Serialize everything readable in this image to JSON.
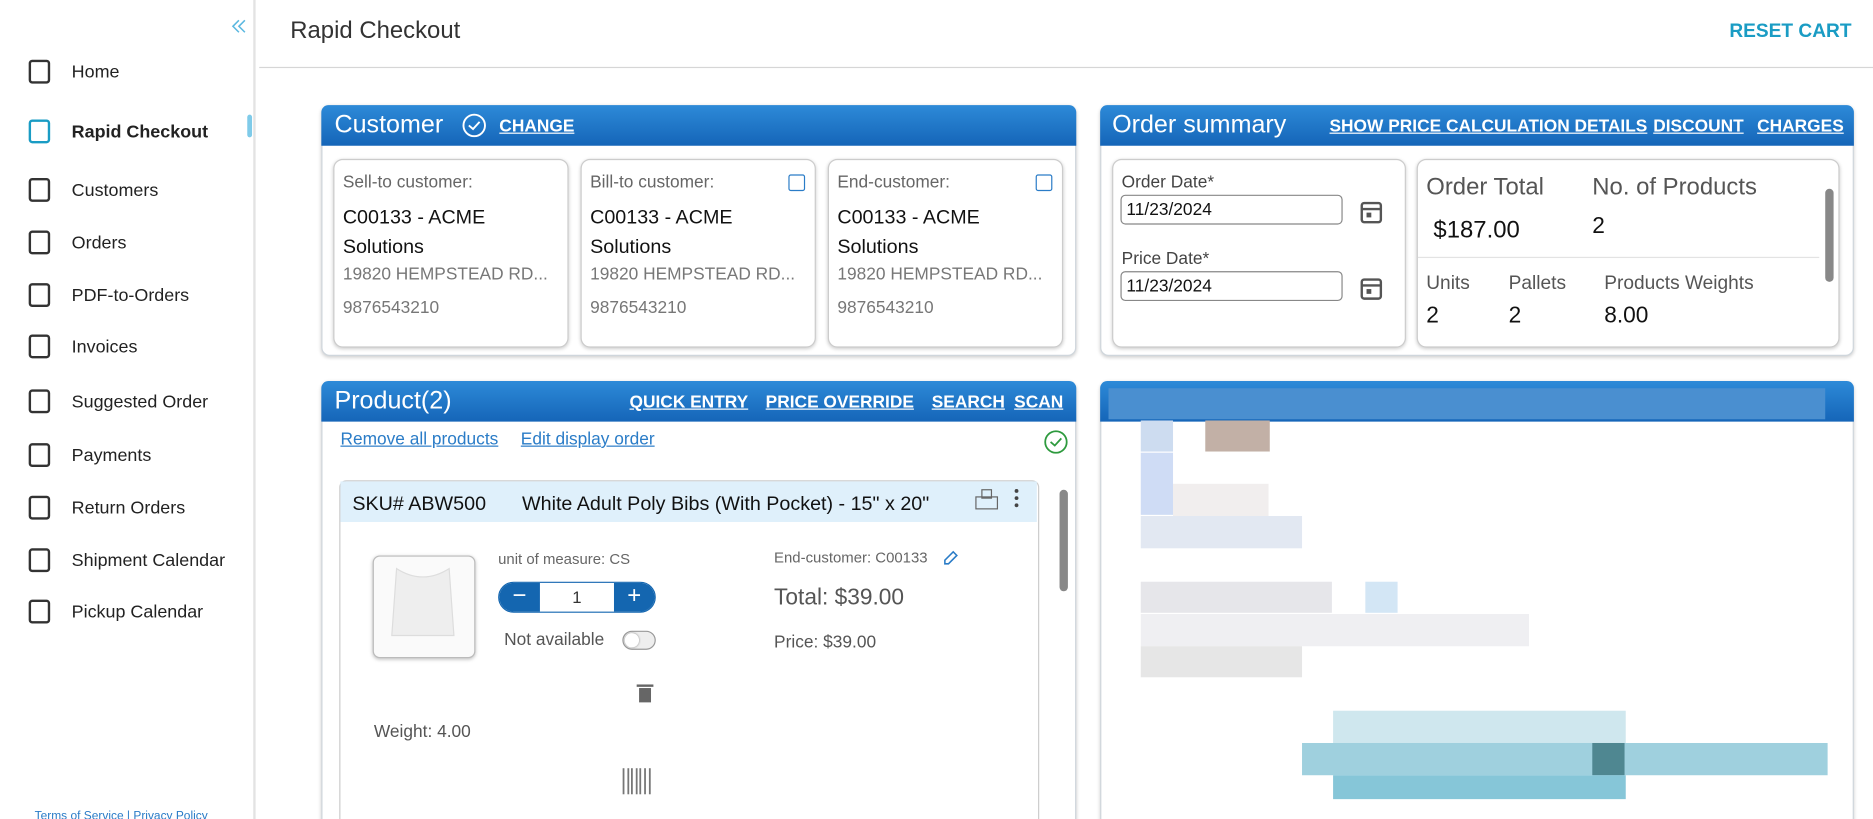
{
  "sidebar": {
    "nav": [
      "Home",
      "Rapid Checkout",
      "Customers",
      "Orders",
      "PDF-to-Orders",
      "Invoices",
      "Suggested Order",
      "Payments",
      "Return Orders",
      "Shipment Calendar",
      "Pickup Calendar"
    ],
    "footer": [
      "Terms of Service",
      "|",
      "Privacy Policy"
    ]
  },
  "header": {
    "title": "Rapid Checkout",
    "action": "RESET CART"
  },
  "customer": {
    "title": "Customer",
    "action": "CHANGE",
    "cards": [
      {
        "label": "Sell-to customer:",
        "name": "C00133 - ACME Solutions",
        "address": "19820 HEMPSTEAD RD...",
        "phone": "9876543210"
      },
      {
        "label": "Bill-to customer:",
        "name": "C00133 - ACME Solutions",
        "address": "19820 HEMPSTEAD RD...",
        "phone": "9876543210"
      },
      {
        "label": "End-customer:",
        "name": "C00133 - ACME Solutions",
        "address": "19820 HEMPSTEAD RD...",
        "phone": "9876543210"
      }
    ]
  },
  "order_summary": {
    "title": "Order summary",
    "actions": [
      "SHOW PRICE CALCULATION DETAILS",
      "DISCOUNT",
      "CHARGES"
    ],
    "order_date_label": "Order Date*",
    "order_date": "11/23/2024",
    "price_date_label": "Price Date*",
    "price_date": "11/23/2024",
    "order_total_label": "Order Total",
    "order_total": "$187.00",
    "num_products_label": "No. of Products",
    "num_products": "2",
    "units_label": "Units",
    "units": "2",
    "pallets_label": "Pallets",
    "pallets": "2",
    "weights_label": "Products Weights",
    "weights": "8.00"
  },
  "product": {
    "title": "Product(2)",
    "actions": [
      "QUICK ENTRY",
      "PRICE OVERRIDE",
      "SEARCH",
      "SCAN"
    ],
    "links": [
      "Remove all products",
      "Edit display order"
    ],
    "items": [
      {
        "sku": "SKU# ABW500",
        "description": "White Adult Poly Bibs (With Pocket) - 15\" x 20\"",
        "uom": "unit of measure: CS",
        "quantity": "1",
        "availability": "Not available",
        "end_customer": "End-customer: C00133",
        "total": "Total: $39.00",
        "price": "Price: $39.00",
        "weight": "Weight: 4.00"
      }
    ]
  }
}
